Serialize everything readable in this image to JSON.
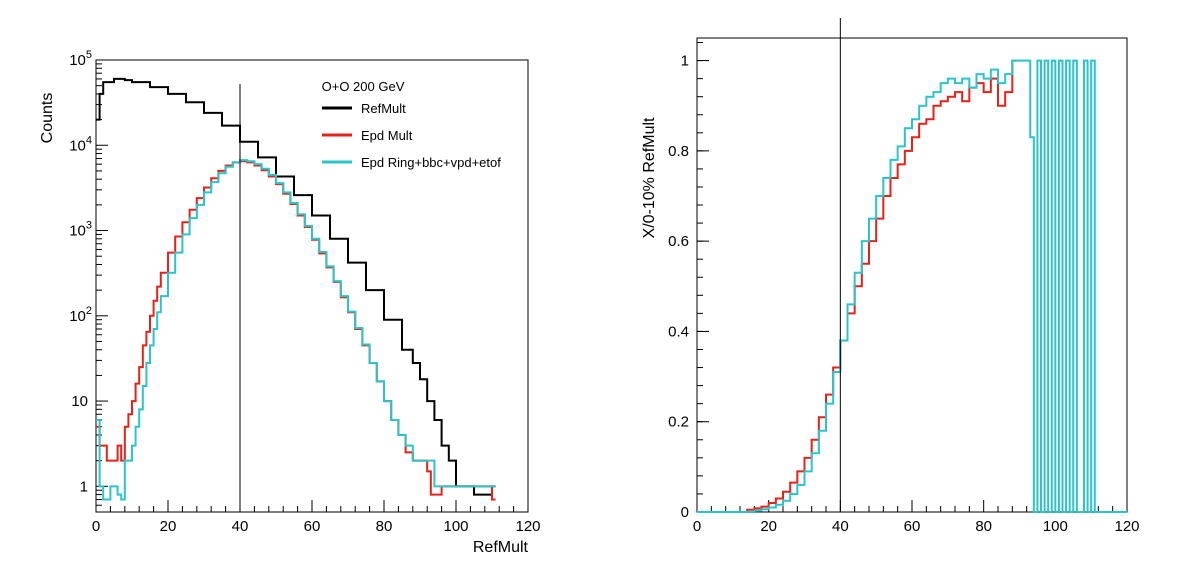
{
  "chart_data": [
    {
      "type": "line",
      "plot": "left",
      "xlabel": "RefMult",
      "ylabel": "Counts",
      "x_range": [
        0,
        120
      ],
      "y_range": [
        0.5,
        100000
      ],
      "y_scale": "log",
      "x_ticks": [
        0,
        20,
        40,
        60,
        80,
        100,
        120
      ],
      "y_ticks": [
        {
          "value": 1,
          "label": "1"
        },
        {
          "value": 10,
          "label": "10"
        },
        {
          "value": 100,
          "label": "10",
          "sup": "2"
        },
        {
          "value": 1000,
          "label": "10",
          "sup": "3"
        },
        {
          "value": 10000,
          "label": "10",
          "sup": "4"
        },
        {
          "value": 100000,
          "label": "10",
          "sup": "5"
        }
      ],
      "vline_x": 40,
      "legend": {
        "placement": "top-right",
        "header": "O+O 200 GeV",
        "entries": [
          "RefMult",
          "Epd Mult",
          "Epd Ring+bbc+vpd+etof"
        ]
      },
      "series": [
        {
          "name": "RefMult",
          "color": "#000000",
          "x": [
            0,
            1,
            2,
            5,
            8,
            10,
            15,
            20,
            25,
            30,
            35,
            40,
            45,
            50,
            55,
            60,
            65,
            70,
            75,
            80,
            85,
            88,
            90,
            92,
            94,
            96,
            98,
            100,
            105,
            110
          ],
          "y": [
            20000,
            40000,
            55000,
            60000,
            58000,
            55000,
            48000,
            40000,
            32000,
            24000,
            17000,
            11000,
            7200,
            4300,
            2600,
            1500,
            800,
            420,
            200,
            90,
            40,
            28,
            18,
            10,
            6,
            3,
            2,
            1,
            0.8,
            1
          ]
        },
        {
          "name": "Epd Mult",
          "color": "#e8201a",
          "x": [
            0,
            1,
            2,
            3,
            4,
            5,
            6,
            7,
            8,
            9,
            10,
            11,
            12,
            13,
            14,
            15,
            16,
            17,
            18,
            20,
            22,
            24,
            26,
            28,
            30,
            32,
            34,
            36,
            38,
            40,
            42,
            44,
            46,
            48,
            50,
            52,
            54,
            56,
            58,
            60,
            62,
            64,
            66,
            68,
            70,
            72,
            74,
            76,
            78,
            80,
            82,
            84,
            86,
            88,
            90,
            92,
            93,
            94,
            96,
            98,
            100,
            105,
            110
          ],
          "y": [
            5,
            3,
            3,
            2,
            2,
            2,
            3,
            2,
            5,
            7,
            10,
            16,
            25,
            45,
            65,
            100,
            150,
            220,
            320,
            550,
            850,
            1250,
            1750,
            2400,
            3200,
            4100,
            5000,
            5800,
            6300,
            6500,
            6300,
            5800,
            5100,
            4300,
            3500,
            2700,
            2050,
            1500,
            1100,
            780,
            540,
            370,
            250,
            165,
            110,
            70,
            45,
            28,
            17,
            10,
            6,
            4,
            2.5,
            2,
            2,
            1.5,
            0.8,
            0.8,
            1,
            1,
            1,
            1,
            0.7
          ]
        },
        {
          "name": "Epd Ring+bbc+vpd+etof",
          "color": "#2bc4c8",
          "x": [
            0,
            1,
            2,
            3,
            4,
            5,
            6,
            7,
            8,
            9,
            10,
            11,
            12,
            13,
            14,
            15,
            16,
            17,
            18,
            20,
            22,
            24,
            26,
            28,
            30,
            32,
            34,
            36,
            38,
            40,
            42,
            44,
            46,
            48,
            50,
            52,
            54,
            56,
            58,
            60,
            62,
            64,
            66,
            68,
            70,
            72,
            74,
            76,
            78,
            80,
            82,
            84,
            86,
            88,
            90,
            92,
            94,
            96,
            98,
            100,
            105,
            110
          ],
          "y": [
            6,
            1,
            0.7,
            0.7,
            1,
            1,
            0.8,
            0.7,
            2,
            2,
            3,
            5,
            8,
            15,
            28,
            45,
            70,
            110,
            170,
            320,
            550,
            900,
            1400,
            2000,
            2800,
            3700,
            4700,
            5600,
            6300,
            6700,
            6500,
            6000,
            5300,
            4500,
            3600,
            2800,
            2100,
            1550,
            1130,
            800,
            560,
            380,
            255,
            170,
            112,
            72,
            46,
            28,
            17,
            10,
            6,
            4,
            3,
            2,
            2,
            2,
            1,
            1,
            1,
            1,
            1,
            1
          ]
        }
      ]
    },
    {
      "type": "line",
      "plot": "right",
      "xlabel": "",
      "ylabel": "X/0-10% RefMult",
      "x_range": [
        0,
        120
      ],
      "y_range": [
        0,
        1.05
      ],
      "x_ticks": [
        0,
        20,
        40,
        60,
        80,
        100,
        120
      ],
      "y_ticks": [
        {
          "value": 0,
          "label": "0"
        },
        {
          "value": 0.2,
          "label": "0.2"
        },
        {
          "value": 0.4,
          "label": "0.4"
        },
        {
          "value": 0.6,
          "label": "0.6"
        },
        {
          "value": 0.8,
          "label": "0.8"
        },
        {
          "value": 1,
          "label": "1"
        }
      ],
      "vline_x": 40,
      "series": [
        {
          "name": "Epd Mult",
          "color": "#e8201a",
          "x": [
            0,
            10,
            14,
            16,
            18,
            20,
            22,
            24,
            26,
            28,
            30,
            32,
            34,
            36,
            38,
            40,
            42,
            44,
            46,
            48,
            50,
            52,
            54,
            56,
            58,
            60,
            62,
            64,
            66,
            68,
            70,
            72,
            74,
            76,
            78,
            80,
            82,
            84,
            86,
            88
          ],
          "y": [
            0,
            0,
            0.005,
            0.008,
            0.012,
            0.02,
            0.03,
            0.045,
            0.065,
            0.09,
            0.12,
            0.16,
            0.21,
            0.26,
            0.32,
            0.38,
            0.44,
            0.5,
            0.55,
            0.6,
            0.65,
            0.7,
            0.74,
            0.77,
            0.8,
            0.83,
            0.86,
            0.87,
            0.9,
            0.91,
            0.92,
            0.93,
            0.91,
            0.94,
            0.95,
            0.93,
            0.96,
            0.9,
            0.93,
            1.0
          ]
        },
        {
          "name": "Epd Ring+bbc+vpd+etof",
          "color": "#2bc4c8",
          "x": [
            0,
            14,
            16,
            18,
            20,
            22,
            24,
            26,
            28,
            30,
            32,
            34,
            36,
            38,
            40,
            42,
            44,
            46,
            48,
            50,
            52,
            54,
            56,
            58,
            60,
            62,
            64,
            66,
            68,
            70,
            72,
            74,
            76,
            78,
            80,
            82,
            84,
            86,
            88,
            90,
            92,
            93,
            94,
            95,
            96,
            97,
            98,
            99,
            100,
            101,
            102,
            103,
            104,
            105,
            106,
            107,
            108,
            109,
            110,
            111,
            120
          ],
          "y": [
            0,
            0,
            0.003,
            0.006,
            0.01,
            0.016,
            0.025,
            0.04,
            0.06,
            0.09,
            0.13,
            0.18,
            0.24,
            0.31,
            0.38,
            0.46,
            0.53,
            0.6,
            0.65,
            0.7,
            0.74,
            0.78,
            0.81,
            0.85,
            0.87,
            0.9,
            0.92,
            0.93,
            0.95,
            0.96,
            0.95,
            0.96,
            0.94,
            0.97,
            0.96,
            0.98,
            0.95,
            0.97,
            1.0,
            1.0,
            1.0,
            0.83,
            0,
            1.0,
            0,
            1.0,
            0,
            1.0,
            0,
            1.0,
            0,
            1.0,
            0,
            1.0,
            0,
            0,
            1.0,
            0,
            1.0,
            0,
            0
          ]
        }
      ]
    }
  ]
}
